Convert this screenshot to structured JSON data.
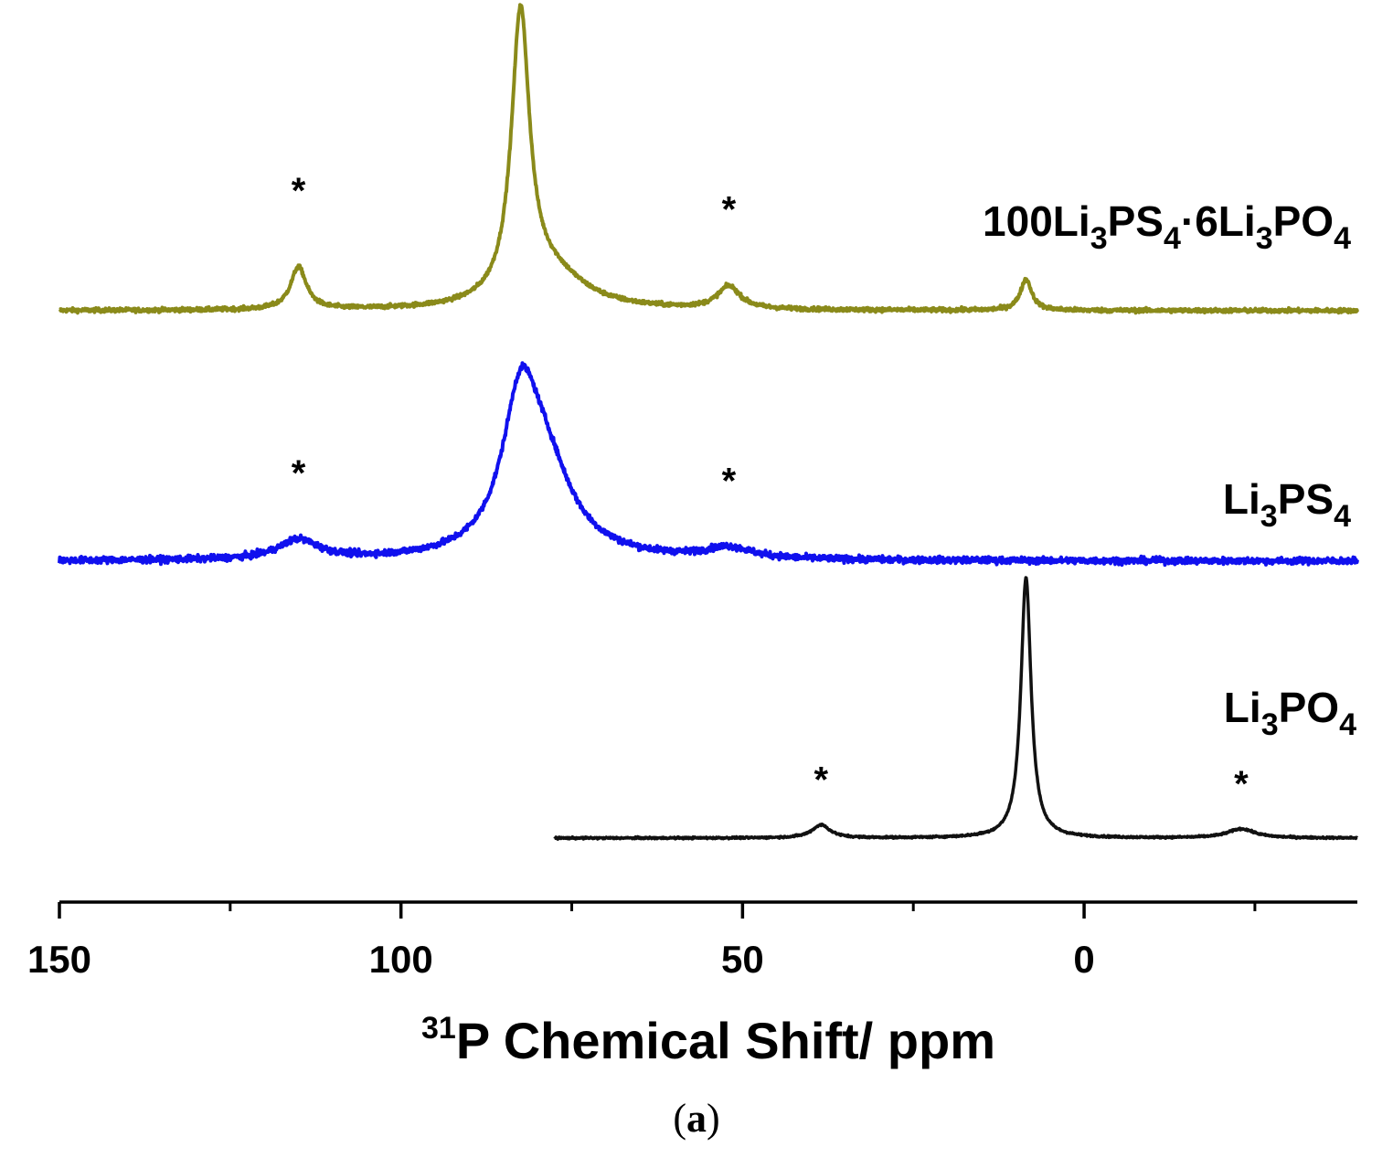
{
  "chart_data": {
    "type": "line",
    "xlabel": {
      "sup": "31",
      "text": "P Chemical Shift/ ppm"
    },
    "x_reversed": true,
    "xlim": [
      150,
      -40
    ],
    "xticks": [
      {
        "value": 150,
        "label": "150"
      },
      {
        "value": 100,
        "label": "100"
      },
      {
        "value": 50,
        "label": "50"
      },
      {
        "value": 0,
        "label": "0"
      }
    ],
    "minor_xticks": [
      125,
      75,
      25,
      -25
    ],
    "y_axis_shown": false,
    "grid": false,
    "caption": {
      "open": "(",
      "letter": "a",
      "close": ")"
    },
    "series": [
      {
        "name": "100Li3PS4·6Li3PO4",
        "label_parts": [
          {
            "t": "100Li",
            "s": "n"
          },
          {
            "t": "3",
            "s": "sub"
          },
          {
            "t": "PS",
            "s": "n"
          },
          {
            "t": "4",
            "s": "sub"
          },
          {
            "t": "·6Li",
            "s": "n"
          },
          {
            "t": "3",
            "s": "sub"
          },
          {
            "t": "PO",
            "s": "n"
          },
          {
            "t": "4",
            "s": "sub"
          }
        ],
        "color": "#8a8a1a",
        "x_range": [
          150,
          -40
        ],
        "noise": 0.012,
        "peaks": [
          {
            "x": 82.5,
            "h": 1.0,
            "w": 1.6
          },
          {
            "x": 115,
            "h": 0.15,
            "w": 1.4
          },
          {
            "x": 52,
            "h": 0.08,
            "w": 2.0
          },
          {
            "x": 8.5,
            "h": 0.11,
            "w": 1.0
          },
          {
            "x": 78,
            "h": 0.12,
            "w": 6.0
          }
        ],
        "spinning_sidebands": [
          115,
          52
        ]
      },
      {
        "name": "Li3PS4",
        "label_parts": [
          {
            "t": "Li",
            "s": "n"
          },
          {
            "t": "3",
            "s": "sub"
          },
          {
            "t": "PS",
            "s": "n"
          },
          {
            "t": "4",
            "s": "sub"
          }
        ],
        "color": "#1010ee",
        "x_range": [
          150,
          -40
        ],
        "noise": 0.025,
        "peaks": [
          {
            "x": 82.5,
            "h": 0.62,
            "w": 3.2
          },
          {
            "x": 79,
            "h": 0.38,
            "w": 5.0
          },
          {
            "x": 115,
            "h": 0.09,
            "w": 3.5
          },
          {
            "x": 52,
            "h": 0.05,
            "w": 4.0
          }
        ],
        "spinning_sidebands": [
          115,
          52
        ]
      },
      {
        "name": "Li3PO4",
        "label_parts": [
          {
            "t": "Li",
            "s": "n"
          },
          {
            "t": "3",
            "s": "sub"
          },
          {
            "t": "PO",
            "s": "n"
          },
          {
            "t": "4",
            "s": "sub"
          }
        ],
        "color": "#111111",
        "x_range": [
          77.5,
          -40
        ],
        "noise": 0.006,
        "peaks": [
          {
            "x": 8.5,
            "h": 1.0,
            "w": 0.9
          },
          {
            "x": 38.5,
            "h": 0.05,
            "w": 1.6
          },
          {
            "x": -23,
            "h": 0.035,
            "w": 2.4
          }
        ],
        "spinning_sidebands": [
          38.5,
          -23
        ]
      }
    ],
    "star_label": "*"
  }
}
